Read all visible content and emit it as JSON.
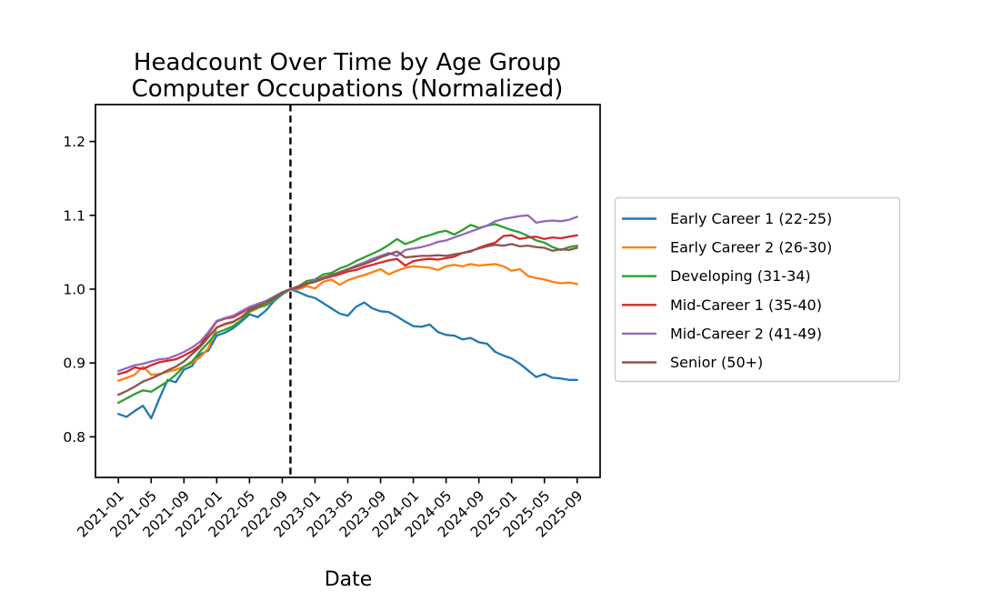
{
  "style": {
    "background": "#ffffff",
    "axis_color": "#000000",
    "text_color": "#000000",
    "legend_border_color": "#cccccc",
    "vline_color": "#000000"
  },
  "chart_data": {
    "type": "line",
    "title_line1": "Headcount Over Time by Age Group",
    "title_line2": "Computer Occupations (Normalized)",
    "xlabel": "Date",
    "ylabel": "",
    "grid": false,
    "legend_position": "outside-right",
    "ylim": [
      0.745,
      1.25
    ],
    "xlim_month_offsets": [
      -2.8,
      58.8
    ],
    "y_ticks": [
      0.8,
      0.9,
      1.0,
      1.1,
      1.2
    ],
    "y_tick_labels": [
      "0.8",
      "0.9",
      "1.0",
      "1.1",
      "1.2"
    ],
    "x_tick_month_indices": [
      0,
      4,
      8,
      12,
      16,
      20,
      24,
      28,
      32,
      36,
      40,
      44,
      48,
      52,
      56
    ],
    "x_tick_labels": [
      "2021-01",
      "2021-05",
      "2021-09",
      "2022-01",
      "2022-05",
      "2022-09",
      "2023-01",
      "2023-05",
      "2023-09",
      "2024-01",
      "2024-05",
      "2024-09",
      "2025-01",
      "2025-05",
      "2025-09"
    ],
    "x": [
      "2021-01",
      "2021-02",
      "2021-03",
      "2021-04",
      "2021-05",
      "2021-06",
      "2021-07",
      "2021-08",
      "2021-09",
      "2021-10",
      "2021-11",
      "2021-12",
      "2022-01",
      "2022-02",
      "2022-03",
      "2022-04",
      "2022-05",
      "2022-06",
      "2022-07",
      "2022-08",
      "2022-09",
      "2022-10",
      "2022-11",
      "2022-12",
      "2023-01",
      "2023-02",
      "2023-03",
      "2023-04",
      "2023-05",
      "2023-06",
      "2023-07",
      "2023-08",
      "2023-09",
      "2023-10",
      "2023-11",
      "2023-12",
      "2024-01",
      "2024-02",
      "2024-03",
      "2024-04",
      "2024-05",
      "2024-06",
      "2024-07",
      "2024-08",
      "2024-09",
      "2024-10",
      "2024-11",
      "2024-12",
      "2025-01",
      "2025-02",
      "2025-03",
      "2025-04",
      "2025-05",
      "2025-06",
      "2025-07",
      "2025-08",
      "2025-09"
    ],
    "vline": {
      "month": "2022-10",
      "month_index": 21,
      "style": "dashed",
      "color": "#000000"
    },
    "normalization_value": 1.0,
    "series": [
      {
        "name": "Early Career 1 (22-25)",
        "color": "#1f77b4",
        "values": [
          0.831,
          0.827,
          0.835,
          0.842,
          0.825,
          0.852,
          0.877,
          0.874,
          0.891,
          0.896,
          0.912,
          0.917,
          0.937,
          0.941,
          0.947,
          0.956,
          0.966,
          0.962,
          0.971,
          0.984,
          0.993,
          1.0,
          0.996,
          0.991,
          0.988,
          0.981,
          0.974,
          0.967,
          0.964,
          0.976,
          0.982,
          0.974,
          0.97,
          0.969,
          0.963,
          0.956,
          0.95,
          0.949,
          0.952,
          0.942,
          0.938,
          0.937,
          0.932,
          0.934,
          0.928,
          0.926,
          0.915,
          0.91,
          0.906,
          0.899,
          0.89,
          0.881,
          0.885,
          0.88,
          0.879,
          0.877,
          0.877
        ]
      },
      {
        "name": "Early Career 2 (26-30)",
        "color": "#ff7f0e",
        "values": [
          0.876,
          0.88,
          0.884,
          0.895,
          0.884,
          0.885,
          0.888,
          0.891,
          0.895,
          0.9,
          0.908,
          0.92,
          0.948,
          0.952,
          0.955,
          0.962,
          0.969,
          0.974,
          0.98,
          0.986,
          0.994,
          1.0,
          1.0,
          1.004,
          1.001,
          1.01,
          1.013,
          1.006,
          1.012,
          1.016,
          1.019,
          1.023,
          1.027,
          1.02,
          1.025,
          1.029,
          1.031,
          1.03,
          1.029,
          1.026,
          1.031,
          1.033,
          1.031,
          1.034,
          1.032,
          1.033,
          1.034,
          1.031,
          1.025,
          1.027,
          1.018,
          1.015,
          1.013,
          1.01,
          1.008,
          1.009,
          1.007
        ]
      },
      {
        "name": "Developing (31-34)",
        "color": "#2ca02c",
        "values": [
          0.846,
          0.852,
          0.858,
          0.863,
          0.861,
          0.868,
          0.875,
          0.884,
          0.895,
          0.902,
          0.916,
          0.928,
          0.941,
          0.945,
          0.95,
          0.958,
          0.97,
          0.975,
          0.978,
          0.985,
          0.994,
          1.0,
          1.004,
          1.011,
          1.013,
          1.02,
          1.022,
          1.028,
          1.032,
          1.038,
          1.043,
          1.048,
          1.053,
          1.06,
          1.068,
          1.061,
          1.065,
          1.07,
          1.073,
          1.077,
          1.079,
          1.074,
          1.08,
          1.087,
          1.083,
          1.086,
          1.088,
          1.084,
          1.08,
          1.077,
          1.072,
          1.066,
          1.063,
          1.057,
          1.053,
          1.057,
          1.059
        ]
      },
      {
        "name": "Mid-Career 1 (35-40)",
        "color": "#d62728",
        "values": [
          0.885,
          0.888,
          0.894,
          0.892,
          0.897,
          0.901,
          0.903,
          0.905,
          0.91,
          0.916,
          0.924,
          0.94,
          0.956,
          0.96,
          0.962,
          0.968,
          0.975,
          0.979,
          0.983,
          0.989,
          0.995,
          1.0,
          1.003,
          1.008,
          1.01,
          1.014,
          1.017,
          1.02,
          1.024,
          1.026,
          1.03,
          1.033,
          1.036,
          1.039,
          1.041,
          1.032,
          1.038,
          1.04,
          1.041,
          1.04,
          1.042,
          1.044,
          1.049,
          1.051,
          1.056,
          1.06,
          1.063,
          1.072,
          1.073,
          1.068,
          1.07,
          1.071,
          1.068,
          1.07,
          1.069,
          1.071,
          1.073
        ]
      },
      {
        "name": "Mid-Career 2 (41-49)",
        "color": "#9467bd",
        "values": [
          0.889,
          0.893,
          0.897,
          0.899,
          0.902,
          0.905,
          0.906,
          0.91,
          0.915,
          0.921,
          0.929,
          0.942,
          0.957,
          0.961,
          0.964,
          0.97,
          0.976,
          0.98,
          0.984,
          0.99,
          0.996,
          1.0,
          1.002,
          1.007,
          1.012,
          1.015,
          1.018,
          1.023,
          1.027,
          1.032,
          1.036,
          1.041,
          1.045,
          1.049,
          1.045,
          1.053,
          1.055,
          1.057,
          1.06,
          1.064,
          1.066,
          1.07,
          1.074,
          1.078,
          1.082,
          1.086,
          1.092,
          1.095,
          1.097,
          1.099,
          1.1,
          1.09,
          1.092,
          1.093,
          1.092,
          1.094,
          1.098
        ]
      },
      {
        "name": "Senior (50+)",
        "color": "#8c564b",
        "values": [
          0.857,
          0.862,
          0.868,
          0.875,
          0.879,
          0.884,
          0.89,
          0.895,
          0.902,
          0.912,
          0.922,
          0.935,
          0.948,
          0.953,
          0.956,
          0.962,
          0.972,
          0.977,
          0.982,
          0.988,
          0.995,
          1.0,
          1.002,
          1.007,
          1.01,
          1.016,
          1.019,
          1.023,
          1.027,
          1.03,
          1.034,
          1.038,
          1.043,
          1.047,
          1.051,
          1.043,
          1.044,
          1.045,
          1.045,
          1.046,
          1.045,
          1.047,
          1.049,
          1.052,
          1.055,
          1.058,
          1.06,
          1.059,
          1.061,
          1.058,
          1.059,
          1.057,
          1.056,
          1.052,
          1.054,
          1.053,
          1.056
        ]
      }
    ]
  }
}
